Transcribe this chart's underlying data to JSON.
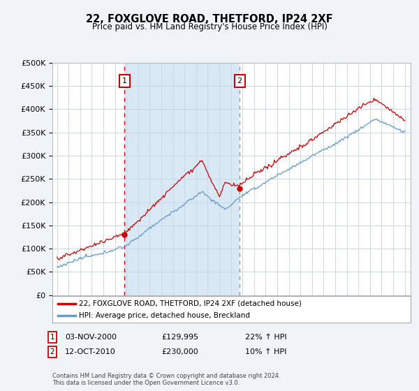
{
  "title": "22, FOXGLOVE ROAD, THETFORD, IP24 2XF",
  "subtitle": "Price paid vs. HM Land Registry's House Price Index (HPI)",
  "bg_color": "#f0f4f8",
  "plot_bg_color": "#ffffff",
  "shaded_region_color": "#d8e8f5",
  "grid_color": "#c8d8e8",
  "hpi_color": "#6699cc",
  "property_color": "#cc0000",
  "sale1_vline_color": "#cc0000",
  "sale2_vline_color": "#8899bb",
  "ylim": [
    0,
    500000
  ],
  "yticks": [
    0,
    50000,
    100000,
    150000,
    200000,
    250000,
    300000,
    350000,
    400000,
    450000,
    500000
  ],
  "ytick_labels": [
    "£0",
    "£50K",
    "£100K",
    "£150K",
    "£200K",
    "£250K",
    "£300K",
    "£350K",
    "£400K",
    "£450K",
    "£500K"
  ],
  "sale1_price": 129995,
  "sale1_date": "03-NOV-2000",
  "sale1_label": "22% ↑ HPI",
  "sale2_price": 230000,
  "sale2_date": "12-OCT-2010",
  "sale2_label": "10% ↑ HPI",
  "legend_property": "22, FOXGLOVE ROAD, THETFORD, IP24 2XF (detached house)",
  "legend_hpi": "HPI: Average price, detached house, Breckland",
  "footnote": "Contains HM Land Registry data © Crown copyright and database right 2024.\nThis data is licensed under the Open Government Licence v3.0."
}
